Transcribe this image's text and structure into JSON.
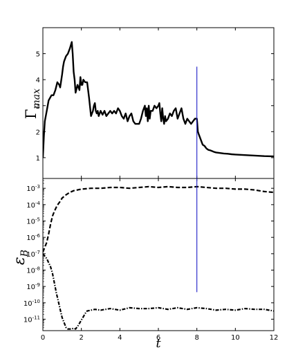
{
  "chart_data": [
    {
      "type": "line",
      "panel": "top",
      "ylabel": "Γ",
      "ylabel_sub": "max",
      "xlim": [
        0,
        12
      ],
      "ylim": [
        0.2,
        6.0
      ],
      "yticks": [
        1,
        2,
        3,
        4,
        5
      ],
      "ytick_labels": [
        "1",
        "2",
        "3",
        "4",
        "5"
      ],
      "grid": false,
      "series": [
        {
          "line_style": "solid",
          "color": "#000000",
          "x": [
            0,
            0.05,
            0.1,
            0.2,
            0.3,
            0.45,
            0.55,
            0.65,
            0.75,
            0.85,
            0.9,
            1.0,
            1.05,
            1.1,
            1.2,
            1.3,
            1.4,
            1.5,
            1.55,
            1.6,
            1.65,
            1.7,
            1.8,
            1.9,
            1.95,
            2.0,
            2.05,
            2.1,
            2.2,
            2.3,
            2.35,
            2.4,
            2.45,
            2.5,
            2.55,
            2.6,
            2.65,
            2.7,
            2.75,
            2.8,
            2.85,
            2.9,
            3.0,
            3.1,
            3.2,
            3.3,
            3.4,
            3.5,
            3.6,
            3.7,
            3.8,
            3.9,
            4.0,
            4.1,
            4.2,
            4.3,
            4.4,
            4.5,
            4.6,
            4.7,
            4.8,
            4.9,
            5.0,
            5.1,
            5.2,
            5.3,
            5.35,
            5.4,
            5.45,
            5.5,
            5.55,
            5.6,
            5.7,
            5.8,
            5.9,
            6.0,
            6.05,
            6.1,
            6.15,
            6.2,
            6.25,
            6.3,
            6.35,
            6.4,
            6.5,
            6.6,
            6.7,
            6.8,
            6.9,
            7.0,
            7.1,
            7.2,
            7.3,
            7.4,
            7.5,
            7.6,
            7.7,
            7.8,
            7.9,
            8.0,
            8.05,
            8.1,
            8.2,
            8.3,
            8.4,
            8.5,
            8.6,
            8.7,
            8.8,
            8.9,
            9.0,
            9.2,
            9.4,
            9.6,
            9.8,
            10.0,
            10.5,
            11.0,
            11.5,
            12.0
          ],
          "y": [
            1.0,
            1.8,
            2.4,
            2.8,
            3.2,
            3.4,
            3.4,
            3.6,
            3.9,
            3.8,
            3.7,
            4.2,
            4.5,
            4.7,
            4.9,
            5.0,
            5.2,
            5.45,
            5.0,
            4.3,
            4.0,
            3.5,
            3.8,
            3.6,
            4.1,
            3.8,
            3.8,
            4.0,
            3.9,
            3.9,
            3.6,
            3.3,
            2.95,
            2.6,
            2.7,
            2.8,
            3.0,
            3.1,
            2.8,
            2.7,
            2.8,
            2.6,
            2.8,
            2.65,
            2.8,
            2.6,
            2.7,
            2.8,
            2.7,
            2.8,
            2.7,
            2.9,
            2.8,
            2.6,
            2.5,
            2.7,
            2.4,
            2.6,
            2.7,
            2.4,
            2.3,
            2.3,
            2.3,
            2.5,
            2.8,
            3.0,
            2.6,
            2.9,
            2.4,
            3.0,
            2.5,
            2.8,
            2.8,
            3.0,
            2.9,
            3.0,
            3.1,
            2.7,
            2.4,
            2.9,
            2.5,
            2.3,
            2.6,
            2.4,
            2.5,
            2.7,
            2.6,
            2.8,
            2.9,
            2.5,
            2.7,
            2.9,
            2.5,
            2.3,
            2.5,
            2.4,
            2.3,
            2.4,
            2.5,
            2.5,
            2.0,
            1.9,
            1.7,
            1.5,
            1.45,
            1.35,
            1.3,
            1.28,
            1.25,
            1.22,
            1.2,
            1.18,
            1.16,
            1.15,
            1.13,
            1.12,
            1.1,
            1.08,
            1.06,
            1.05
          ]
        }
      ],
      "vertical_line": {
        "x": 8,
        "y_top": 4.5,
        "color": "#1e1ec8"
      }
    },
    {
      "type": "line",
      "panel": "bottom",
      "ylabel": "ε",
      "ylabel_sub": "B",
      "xlabel": "t",
      "xlim": [
        0,
        12
      ],
      "xticks": [
        0,
        2,
        4,
        6,
        8,
        10,
        12
      ],
      "xtick_labels": [
        "0",
        "2",
        "4",
        "6",
        "8",
        "10",
        "12"
      ],
      "yscale": "log",
      "ylim_log10": [
        -11.7,
        -2.4
      ],
      "ytick_exponents": [
        -11,
        -10,
        -9,
        -8,
        -7,
        -6,
        -5,
        -4,
        -3
      ],
      "ytick_base": "10",
      "grid": false,
      "series": [
        {
          "line_style": "dashed",
          "color": "#000000",
          "x": [
            0,
            0.1,
            0.2,
            0.3,
            0.4,
            0.5,
            0.6,
            0.7,
            0.8,
            0.9,
            1.0,
            1.2,
            1.4,
            1.6,
            1.8,
            2.0,
            2.5,
            3.0,
            3.5,
            4.0,
            4.5,
            5.0,
            5.5,
            6.0,
            6.5,
            7.0,
            7.5,
            8.0,
            8.5,
            9.0,
            9.5,
            10.0,
            10.5,
            11.0,
            11.5,
            12.0
          ],
          "log10_y": [
            -6.9,
            -6.6,
            -6.3,
            -5.8,
            -5.2,
            -4.7,
            -4.4,
            -4.15,
            -3.95,
            -3.8,
            -3.6,
            -3.4,
            -3.25,
            -3.15,
            -3.1,
            -3.05,
            -3.0,
            -3.0,
            -2.95,
            -2.95,
            -3.0,
            -2.95,
            -2.9,
            -2.95,
            -2.9,
            -2.95,
            -2.95,
            -2.9,
            -2.95,
            -3.0,
            -3.0,
            -3.05,
            -3.05,
            -3.1,
            -3.2,
            -3.25
          ]
        },
        {
          "line_style": "dash-dot",
          "color": "#000000",
          "x": [
            0,
            0.2,
            0.4,
            0.5,
            0.6,
            0.7,
            0.8,
            0.9,
            1.0,
            1.1,
            1.2,
            1.3,
            1.4,
            1.5,
            1.6,
            1.7,
            1.8,
            1.9,
            2.0,
            2.1,
            2.2,
            2.3,
            2.5,
            2.7,
            3.0,
            3.5,
            4.0,
            4.5,
            5.0,
            5.5,
            6.0,
            6.5,
            7.0,
            7.5,
            8.0,
            8.5,
            9.0,
            9.5,
            10.0,
            10.5,
            11.0,
            11.5,
            12.0
          ],
          "log10_y": [
            -7.0,
            -7.3,
            -7.8,
            -8.2,
            -8.8,
            -9.4,
            -9.9,
            -10.4,
            -10.9,
            -11.2,
            -11.5,
            -11.6,
            -11.6,
            -11.6,
            -11.55,
            -11.6,
            -11.45,
            -11.25,
            -11.05,
            -10.85,
            -10.65,
            -10.5,
            -10.45,
            -10.4,
            -10.45,
            -10.35,
            -10.45,
            -10.3,
            -10.35,
            -10.35,
            -10.3,
            -10.4,
            -10.3,
            -10.4,
            -10.3,
            -10.35,
            -10.45,
            -10.4,
            -10.45,
            -10.35,
            -10.4,
            -10.4,
            -10.5
          ]
        }
      ],
      "vertical_line": {
        "x": 8,
        "y_bottom_log10": -9.35,
        "color": "#1e1ec8"
      }
    }
  ]
}
